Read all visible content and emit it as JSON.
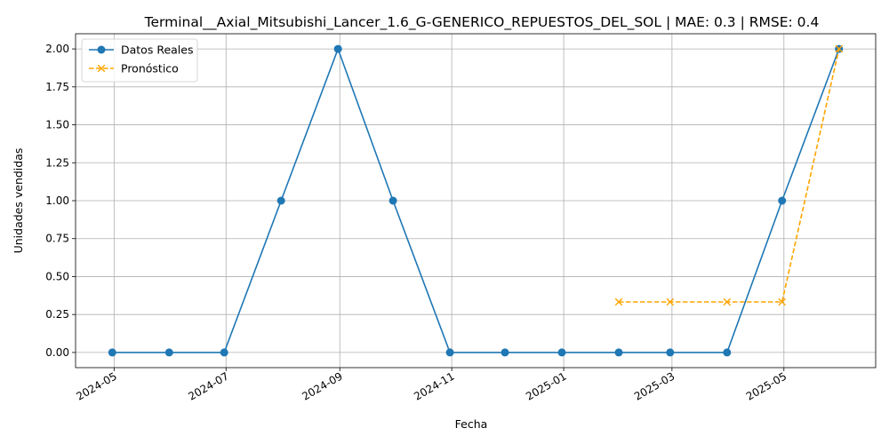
{
  "chart_data": {
    "type": "line",
    "title": "Terminal__Axial_Mitsubishi_Lancer_1.6_G-GENERICO_REPUESTOS_DEL_SOL | MAE: 0.3 | RMSE: 0.4",
    "xlabel": "Fecha",
    "ylabel": "Unidades vendidas",
    "x_ticks": [
      "2024-05",
      "2024-07",
      "2024-09",
      "2024-11",
      "2025-01",
      "2025-03",
      "2025-05"
    ],
    "y_ticks": [
      "0.00",
      "0.25",
      "0.50",
      "0.75",
      "1.00",
      "1.25",
      "1.50",
      "1.75",
      "2.00"
    ],
    "xlim": [
      "2024-04-10",
      "2025-06-20"
    ],
    "ylim": [
      -0.1,
      2.1
    ],
    "grid": true,
    "legend_position": "top-left",
    "series": [
      {
        "name": "Datos Reales",
        "color": "#1f77b4",
        "style": "solid",
        "marker": "circle",
        "x": [
          "2024-04-30",
          "2024-05-31",
          "2024-06-30",
          "2024-07-31",
          "2024-08-31",
          "2024-09-30",
          "2024-10-31",
          "2024-11-30",
          "2024-12-31",
          "2025-01-31",
          "2025-02-28",
          "2025-03-31",
          "2025-04-30",
          "2025-05-31"
        ],
        "values": [
          0,
          0,
          0,
          1,
          2,
          1,
          0,
          0,
          0,
          0,
          0,
          0,
          1,
          2
        ]
      },
      {
        "name": "Pronóstico",
        "color": "#ffa500",
        "style": "dashed",
        "marker": "x",
        "x": [
          "2025-01-31",
          "2025-02-28",
          "2025-03-31",
          "2025-04-30",
          "2025-05-31"
        ],
        "values": [
          0.333,
          0.333,
          0.333,
          0.333,
          2.0
        ]
      }
    ]
  }
}
